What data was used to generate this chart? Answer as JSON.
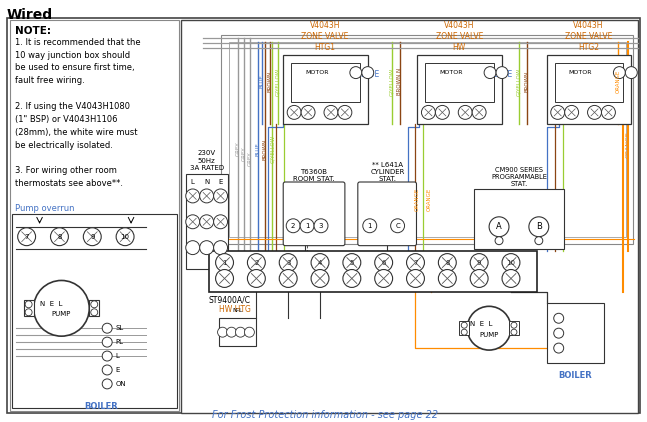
{
  "title": "Wired",
  "bg_color": "#ffffff",
  "note_title": "NOTE:",
  "note_lines": [
    "1. It is recommended that the",
    "10 way junction box should",
    "be used to ensure first time,",
    "fault free wiring.",
    " ",
    "2. If using the V4043H1080",
    "(1\" BSP) or V4043H1106",
    "(28mm), the white wire must",
    "be electrically isolated.",
    " ",
    "3. For wiring other room",
    "thermostats see above**."
  ],
  "pump_overrun_label": "Pump overrun",
  "footer": "For Frost Protection information - see page 22",
  "wire_colors": {
    "grey": "#999999",
    "blue": "#4472c4",
    "brown": "#8B4513",
    "gyellow": "#9acd32",
    "orange": "#FF8C00",
    "black": "#222222"
  },
  "text_blue": "#4472c4",
  "text_orange": "#cc6600",
  "text_black": "#222222",
  "zone_valve_color": "#cc6600"
}
